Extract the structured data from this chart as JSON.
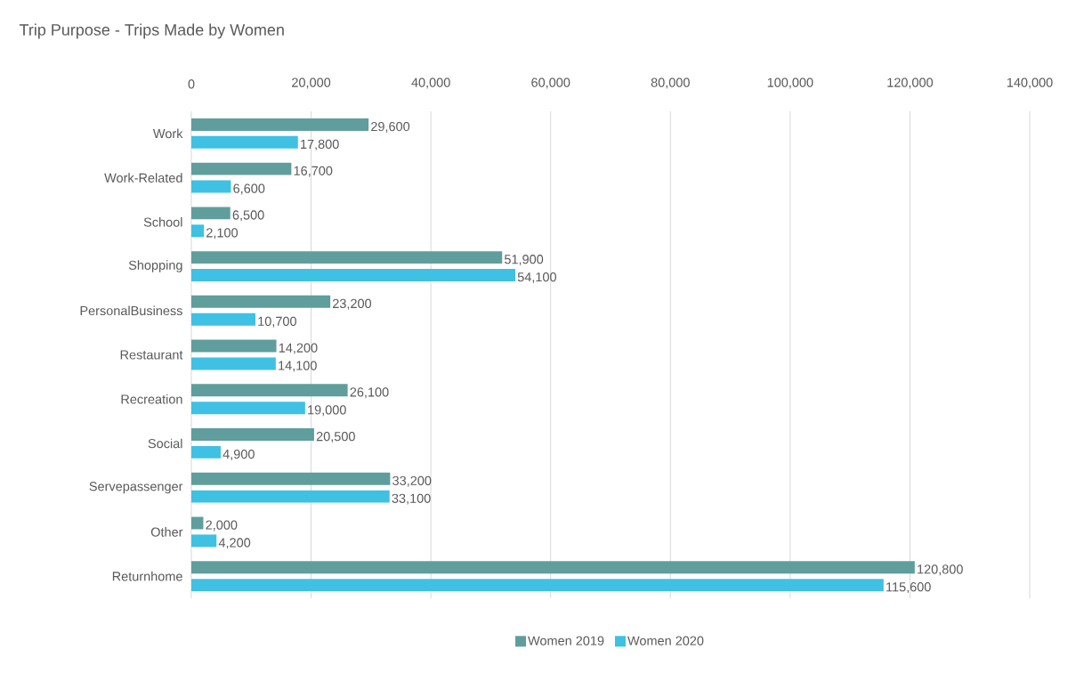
{
  "chart_data": {
    "type": "bar",
    "orientation": "horizontal",
    "title": "Trip Purpose - Trips Made by Women",
    "categories": [
      "Work",
      "Work-Related",
      "School",
      "Shopping",
      "PersonalBusiness",
      "Restaurant",
      "Recreation",
      "Social",
      "Servepassenger",
      "Other",
      "Returnhome"
    ],
    "series": [
      {
        "name": "Women 2019",
        "color": "#5f9e9c",
        "values": [
          29600,
          16700,
          6500,
          51900,
          23200,
          14200,
          26100,
          20500,
          33200,
          2000,
          120800
        ],
        "value_labels": [
          "29,600",
          "16,700",
          "6,500",
          "51,900",
          "23,200",
          "14,200",
          "26,100",
          "20,500",
          "33,200",
          "2,000",
          "120,800"
        ]
      },
      {
        "name": "Women 2020",
        "color": "#3ec1e3",
        "values": [
          17800,
          6600,
          2100,
          54100,
          10700,
          14100,
          19000,
          4900,
          33100,
          4200,
          115600
        ],
        "value_labels": [
          "17,800",
          "6,600",
          "2,100",
          "54,100",
          "10,700",
          "14,100",
          "19,000",
          "4,900",
          "33,100",
          "4,200",
          "115,600"
        ]
      }
    ],
    "xlim": [
      0,
      140000
    ],
    "xticks": [
      0,
      {
        "value": 20000,
        "label": "20,000"
      },
      {
        "value": 40000,
        "label": "40,000"
      },
      {
        "value": 60000,
        "label": "60,000"
      },
      {
        "value": 80000,
        "label": "80,000"
      },
      {
        "value": 100000,
        "label": "100,000"
      },
      {
        "value": 120000,
        "label": "120,000"
      },
      {
        "value": 140000,
        "label": "140,000"
      }
    ],
    "grid": "x",
    "legend": "bottom"
  }
}
